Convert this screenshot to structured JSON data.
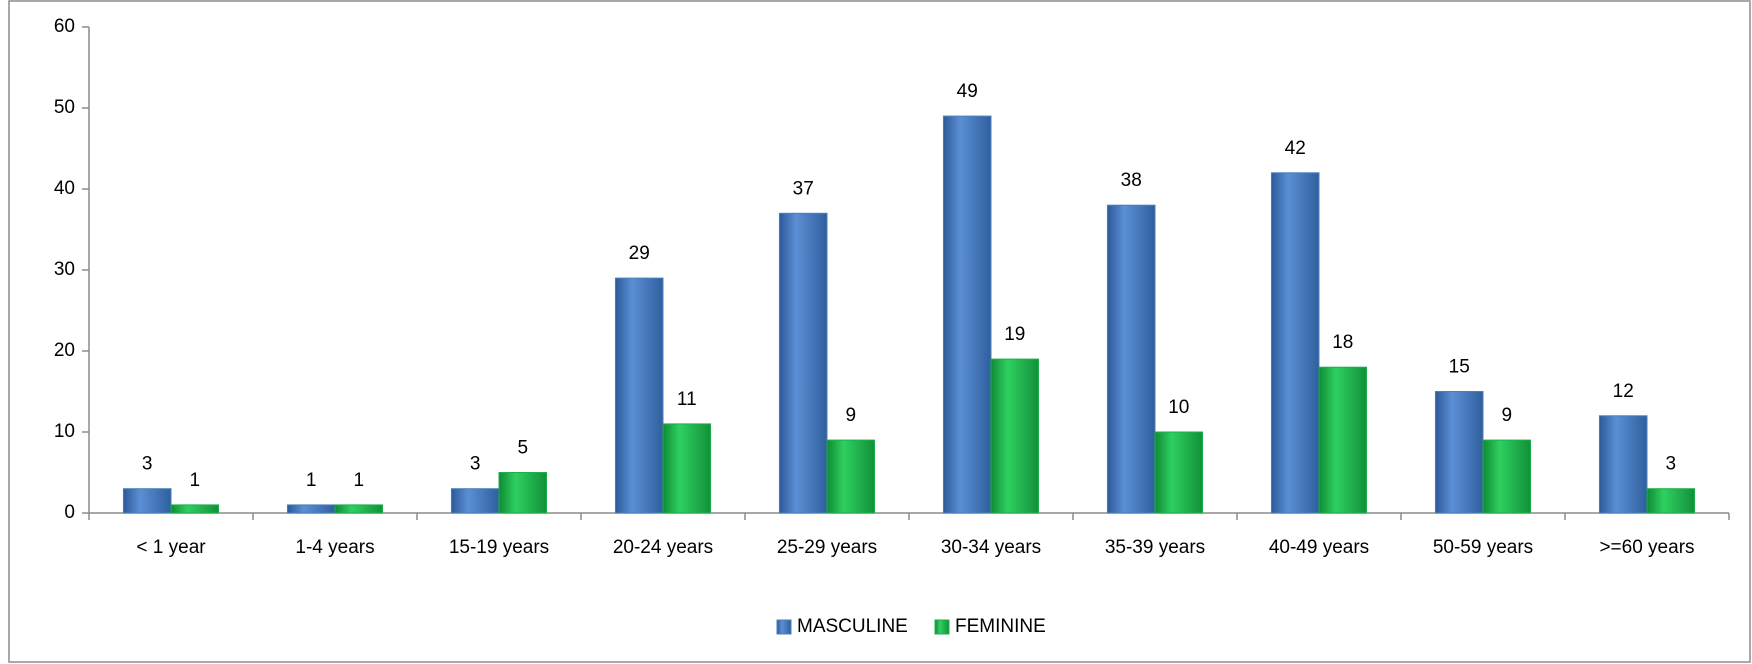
{
  "chart_data": {
    "type": "bar",
    "categories": [
      "< 1 year",
      "1-4 years",
      "15-19 years",
      "20-24 years",
      "25-29 years",
      "30-34 years",
      "35-39 years",
      "40-49 years",
      "50-59 years",
      ">=60 years"
    ],
    "series": [
      {
        "name": "MASCULINE",
        "color": "#4a7ebb",
        "values": [
          3,
          1,
          3,
          29,
          37,
          49,
          38,
          42,
          15,
          12
        ]
      },
      {
        "name": "FEMININE",
        "color": "#1fae4a",
        "values": [
          1,
          1,
          5,
          11,
          9,
          19,
          10,
          18,
          9,
          3
        ]
      }
    ],
    "ylim": [
      0,
      60
    ],
    "yticks": [
      0,
      10,
      20,
      30,
      40,
      50,
      60
    ],
    "grid": false,
    "legend": "bottom"
  }
}
